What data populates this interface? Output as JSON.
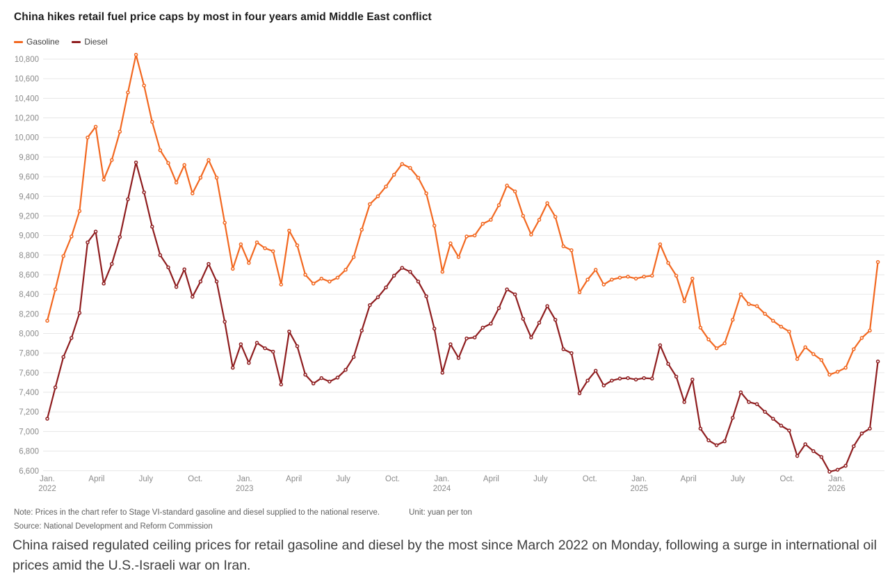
{
  "header": {
    "title": "China hikes retail fuel price caps by most in four years amid Middle East conflict"
  },
  "legend": [
    {
      "label": "Gasoline",
      "color": "#f2671f"
    },
    {
      "label": "Diesel",
      "color": "#8e1c1e"
    }
  ],
  "footnotes": {
    "note": "Note: Prices in the chart refer to Stage VI-standard gasoline and diesel supplied to the national reserve.",
    "unit": "Unit: yuan per ton",
    "source": "Source: National Development and Reform Commission"
  },
  "caption": "China raised regulated ceiling prices for retail gasoline and diesel by the most since March 2022 on Monday, following a surge in international oil prices amid the U.S.-Israeli war on Iran.",
  "chart_data": {
    "type": "line",
    "title": "China hikes retail fuel price caps by most in four years amid Middle East conflict",
    "ylabel": "yuan per ton",
    "ylim": [
      6600,
      10800
    ],
    "ytick_step": 200,
    "grid": "horizontal",
    "legend_position": "top-left",
    "x_span": [
      2022.0,
      2026.21
    ],
    "x_ticks": [
      {
        "pos": 2022.0,
        "label": "Jan.",
        "year": "2022"
      },
      {
        "pos": 2022.25,
        "label": "April"
      },
      {
        "pos": 2022.5,
        "label": "July"
      },
      {
        "pos": 2022.75,
        "label": "Oct."
      },
      {
        "pos": 2023.0,
        "label": "Jan.",
        "year": "2023"
      },
      {
        "pos": 2023.25,
        "label": "April"
      },
      {
        "pos": 2023.5,
        "label": "July"
      },
      {
        "pos": 2023.75,
        "label": "Oct."
      },
      {
        "pos": 2024.0,
        "label": "Jan.",
        "year": "2024"
      },
      {
        "pos": 2024.25,
        "label": "April"
      },
      {
        "pos": 2024.5,
        "label": "July"
      },
      {
        "pos": 2024.75,
        "label": "Oct."
      },
      {
        "pos": 2025.0,
        "label": "Jan.",
        "year": "2025"
      },
      {
        "pos": 2025.25,
        "label": "April"
      },
      {
        "pos": 2025.5,
        "label": "July"
      },
      {
        "pos": 2025.75,
        "label": "Oct."
      },
      {
        "pos": 2026.0,
        "label": "Jan.",
        "year": "2026"
      }
    ],
    "series": [
      {
        "name": "Gasoline",
        "color": "#f2671f",
        "values": [
          8130,
          8450,
          8790,
          8990,
          9250,
          10000,
          10110,
          9570,
          9770,
          10060,
          10460,
          10845,
          10530,
          10160,
          9870,
          9740,
          9540,
          9720,
          9430,
          9590,
          9770,
          9590,
          9130,
          8660,
          8910,
          8720,
          8930,
          8870,
          8840,
          8500,
          9050,
          8900,
          8600,
          8510,
          8560,
          8530,
          8570,
          8650,
          8780,
          9060,
          9320,
          9400,
          9500,
          9620,
          9730,
          9690,
          9590,
          9430,
          9100,
          8630,
          8920,
          8780,
          8990,
          9000,
          9120,
          9160,
          9310,
          9510,
          9450,
          9200,
          9010,
          9160,
          9330,
          9190,
          8890,
          8850,
          8420,
          8550,
          8650,
          8500,
          8550,
          8570,
          8580,
          8560,
          8580,
          8590,
          8910,
          8720,
          8590,
          8330,
          8560,
          8060,
          7940,
          7850,
          7900,
          8140,
          8400,
          8300,
          8280,
          8200,
          8130,
          8070,
          8020,
          7740,
          7860,
          7790,
          7730,
          7580,
          7610,
          7650,
          7840,
          7955,
          8030,
          8730
        ]
      },
      {
        "name": "Diesel",
        "color": "#8e1c1e",
        "values": [
          7130,
          7450,
          7760,
          7955,
          8210,
          8930,
          9040,
          8510,
          8710,
          8985,
          9370,
          9745,
          9440,
          9090,
          8800,
          8675,
          8475,
          8655,
          8375,
          8530,
          8710,
          8530,
          8120,
          7650,
          7890,
          7700,
          7905,
          7850,
          7815,
          7480,
          8020,
          7870,
          7580,
          7490,
          7545,
          7510,
          7550,
          7630,
          7760,
          8030,
          8290,
          8370,
          8470,
          8590,
          8670,
          8630,
          8530,
          8380,
          8050,
          7600,
          7890,
          7750,
          7950,
          7960,
          8060,
          8100,
          8260,
          8450,
          8400,
          8150,
          7960,
          8110,
          8280,
          8140,
          7840,
          7800,
          7390,
          7520,
          7620,
          7470,
          7520,
          7540,
          7545,
          7530,
          7545,
          7540,
          7880,
          7690,
          7560,
          7300,
          7530,
          7030,
          6910,
          6860,
          6900,
          7140,
          7400,
          7300,
          7280,
          7200,
          7130,
          7060,
          7010,
          6750,
          6870,
          6800,
          6740,
          6590,
          6610,
          6650,
          6850,
          6980,
          7030,
          7715
        ]
      }
    ]
  }
}
